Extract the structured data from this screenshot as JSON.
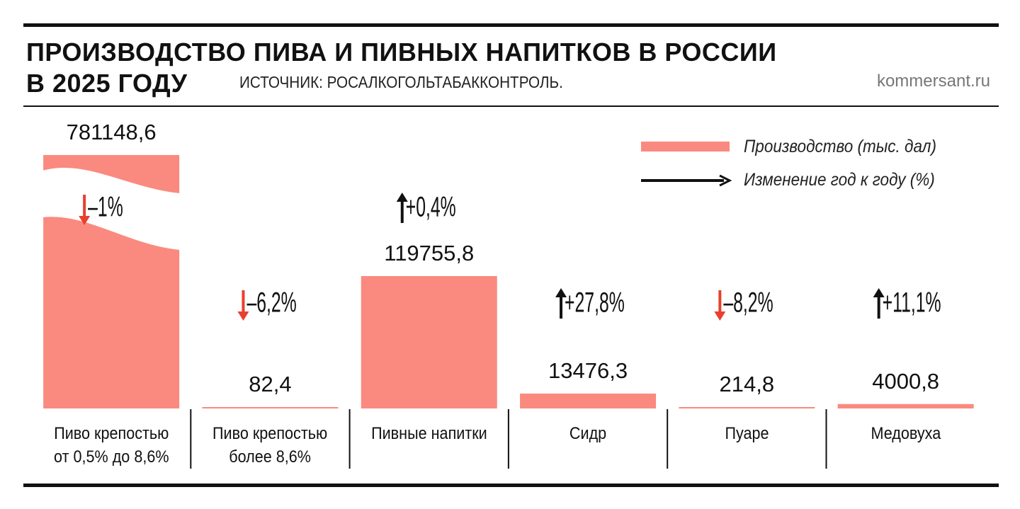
{
  "title": "ПРОИЗВОДСТВО ПИВА И ПИВНЫХ НАПИТКОВ В РОССИИ\nВ 2025 ГОДУ",
  "source": "ИСТОЧНИК: РОСАЛКОГОЛЬТАБАККОНТРОЛЬ.",
  "site": "kommersant.ru",
  "chart_data": {
    "type": "bar",
    "categories": [
      "Пиво крепостью\nот 0,5% до 8,6%",
      "Пиво крепостью\nболее 8,6%",
      "Пивные напитки",
      "Сидр",
      "Пуаре",
      "Медовуха"
    ],
    "series": [
      {
        "name": "Производство (тыс. дал)",
        "color": "#fa8a7f",
        "values": [
          781148.6,
          82.4,
          119755.8,
          13476.3,
          214.8,
          4000.8
        ],
        "value_labels": [
          "781148,6",
          "82,4",
          "119755,8",
          "13476,3",
          "214,8",
          "4000,8"
        ]
      },
      {
        "name": "Изменение год к году (%)",
        "color": "#111111",
        "negative_color": "#e8402f",
        "values": [
          -1,
          -6.2,
          0.4,
          27.8,
          -8.2,
          11.1
        ],
        "value_labels": [
          "–1%",
          "–6,2%",
          "+0,4%",
          "+27,8%",
          "–8,2%",
          "+11,1%"
        ]
      }
    ]
  }
}
